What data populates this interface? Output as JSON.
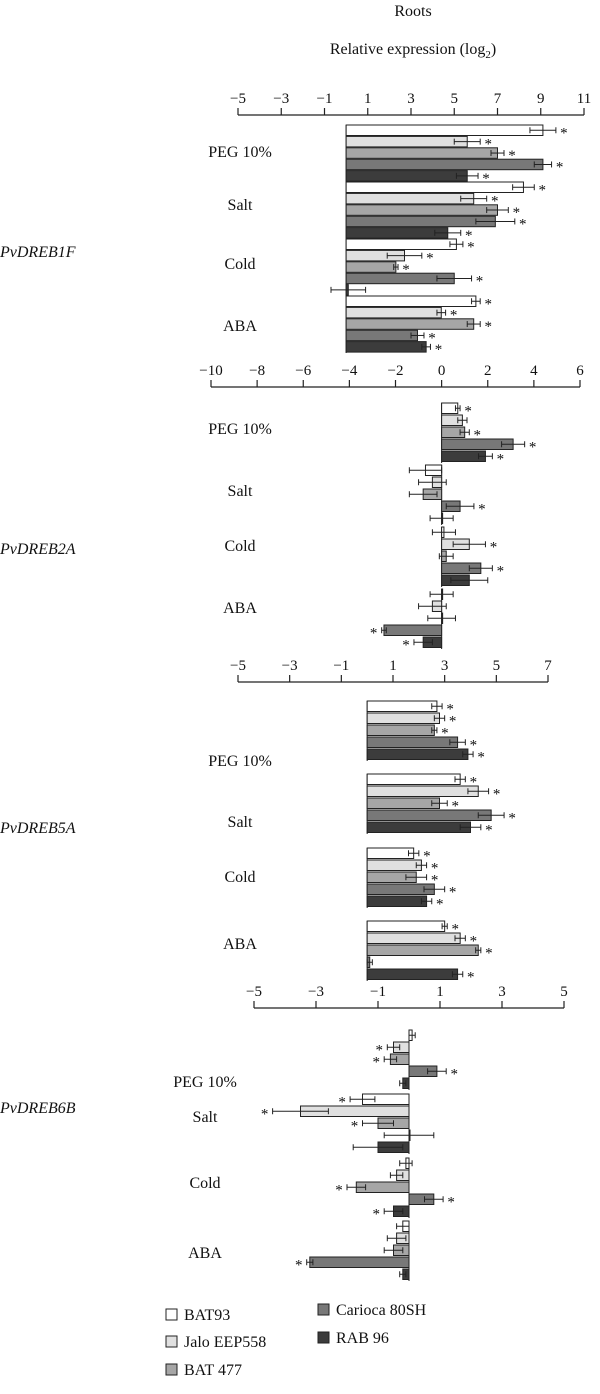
{
  "header": {
    "title": "Roots",
    "axis_label_prefix": "Relative expression (log",
    "axis_label_sub": "2",
    "axis_label_suffix": ")"
  },
  "treatments": [
    "PEG 10%",
    "Salt",
    "Cold",
    "ABA"
  ],
  "legend": [
    {
      "name": "BAT93",
      "color": "#ffffff"
    },
    {
      "name": "Jalo EEP558",
      "color": "#e0e0e0"
    },
    {
      "name": "BAT 477",
      "color": "#a6a6a6"
    },
    {
      "name": "Carioca 80SH",
      "color": "#787878"
    },
    {
      "name": "RAB 96",
      "color": "#3c3c3c"
    }
  ],
  "chart_data": [
    {
      "type": "bar",
      "orientation": "horizontal",
      "gene": "PvDREB1F",
      "xlim": [
        -5,
        11
      ],
      "ticks": [
        -5,
        -3,
        -1,
        1,
        3,
        5,
        7,
        9,
        11
      ],
      "groups": [
        {
          "treatment": "PEG 10%",
          "values": [
            9.1,
            5.6,
            7.0,
            9.1,
            5.6
          ],
          "errors": [
            0.6,
            0.6,
            0.3,
            0.4,
            0.5
          ],
          "sig": [
            true,
            true,
            true,
            true,
            true
          ]
        },
        {
          "treatment": "Salt",
          "values": [
            8.2,
            5.9,
            7.0,
            6.9,
            4.7
          ],
          "errors": [
            0.5,
            0.6,
            0.5,
            0.9,
            0.6
          ],
          "sig": [
            true,
            true,
            true,
            true,
            true
          ]
        },
        {
          "treatment": "Cold",
          "values": [
            5.1,
            2.7,
            2.3,
            5.0,
            0.1
          ],
          "errors": [
            0.3,
            0.8,
            0.1,
            0.8,
            0.8
          ],
          "sig": [
            true,
            true,
            true,
            true,
            false
          ]
        },
        {
          "treatment": "ABA",
          "values": [
            6.0,
            4.4,
            5.9,
            3.3,
            3.7
          ],
          "errors": [
            0.2,
            0.2,
            0.3,
            0.3,
            0.2
          ],
          "sig": [
            true,
            true,
            true,
            true,
            true
          ]
        }
      ]
    },
    {
      "type": "bar",
      "orientation": "horizontal",
      "gene": "PvDREB2A",
      "xlim": [
        -10,
        6
      ],
      "ticks": [
        -10,
        -8,
        -6,
        -4,
        -2,
        0,
        2,
        4,
        6
      ],
      "groups": [
        {
          "treatment": "PEG 10%",
          "values": [
            0.7,
            0.9,
            1.0,
            3.1,
            1.9
          ],
          "errors": [
            0.1,
            0.2,
            0.2,
            0.5,
            0.3
          ],
          "sig": [
            true,
            false,
            true,
            true,
            true
          ]
        },
        {
          "treatment": "Salt",
          "values": [
            -0.7,
            -0.4,
            -0.8,
            0.8,
            0.0
          ],
          "errors": [
            0.7,
            0.6,
            0.6,
            0.6,
            0.5
          ],
          "sig": [
            false,
            false,
            false,
            true,
            false
          ]
        },
        {
          "treatment": "Cold",
          "values": [
            0.1,
            1.2,
            0.2,
            1.7,
            1.2
          ],
          "errors": [
            0.5,
            0.7,
            0.3,
            0.5,
            0.8
          ],
          "sig": [
            false,
            true,
            false,
            true,
            false
          ]
        },
        {
          "treatment": "ABA",
          "values": [
            0.0,
            -0.4,
            0.0,
            -2.5,
            -0.8
          ],
          "errors": [
            0.5,
            0.6,
            0.6,
            0.1,
            0.4
          ],
          "sig": [
            false,
            false,
            false,
            true,
            true
          ]
        }
      ]
    },
    {
      "type": "bar",
      "orientation": "horizontal",
      "gene": "PvDREB5A",
      "xlim": [
        -5,
        7
      ],
      "ticks": [
        -5,
        -3,
        -1,
        1,
        3,
        5,
        7
      ],
      "groups": [
        {
          "treatment": "PEG 10%",
          "values": [
            2.7,
            2.8,
            2.6,
            3.5,
            3.9
          ],
          "errors": [
            0.2,
            0.2,
            0.1,
            0.3,
            0.2
          ],
          "sig": [
            true,
            true,
            true,
            true,
            true
          ]
        },
        {
          "treatment": "Salt",
          "values": [
            3.6,
            4.3,
            2.8,
            4.8,
            4.0
          ],
          "errors": [
            0.2,
            0.4,
            0.3,
            0.5,
            0.4
          ],
          "sig": [
            true,
            true,
            true,
            true,
            true
          ]
        },
        {
          "treatment": "Cold",
          "values": [
            1.8,
            2.1,
            1.9,
            2.6,
            2.3
          ],
          "errors": [
            0.2,
            0.2,
            0.4,
            0.4,
            0.2
          ],
          "sig": [
            true,
            true,
            true,
            true,
            true
          ]
        },
        {
          "treatment": "ABA",
          "values": [
            3.0,
            3.6,
            4.3,
            0.1,
            3.5
          ],
          "errors": [
            0.1,
            0.2,
            0.1,
            0.1,
            0.2
          ],
          "sig": [
            true,
            true,
            true,
            false,
            true
          ]
        }
      ]
    },
    {
      "type": "bar",
      "orientation": "horizontal",
      "gene": "PvDREB6B",
      "xlim": [
        -5,
        5
      ],
      "ticks": [
        -5,
        -3,
        -1,
        1,
        3,
        5
      ],
      "groups": [
        {
          "treatment": "PEG 10%",
          "values": [
            0.1,
            -0.5,
            -0.6,
            0.9,
            -0.2
          ],
          "errors": [
            0.1,
            0.2,
            0.2,
            0.3,
            0.1
          ],
          "sig": [
            false,
            true,
            true,
            true,
            false
          ]
        },
        {
          "treatment": "Salt",
          "values": [
            -1.5,
            -3.5,
            -1.0,
            0.0,
            -1.0
          ],
          "errors": [
            0.4,
            0.9,
            0.5,
            0.8,
            0.8
          ],
          "sig": [
            true,
            true,
            true,
            false,
            false
          ]
        },
        {
          "treatment": "Cold",
          "values": [
            -0.1,
            -0.4,
            -1.7,
            0.8,
            -0.5
          ],
          "errors": [
            0.2,
            0.2,
            0.3,
            0.3,
            0.3
          ],
          "sig": [
            false,
            false,
            true,
            true,
            true
          ]
        },
        {
          "treatment": "ABA",
          "values": [
            -0.2,
            -0.4,
            -0.5,
            -3.2,
            -0.2
          ],
          "errors": [
            0.2,
            0.3,
            0.3,
            0.1,
            0.1
          ],
          "sig": [
            false,
            false,
            false,
            true,
            false
          ]
        }
      ]
    }
  ]
}
